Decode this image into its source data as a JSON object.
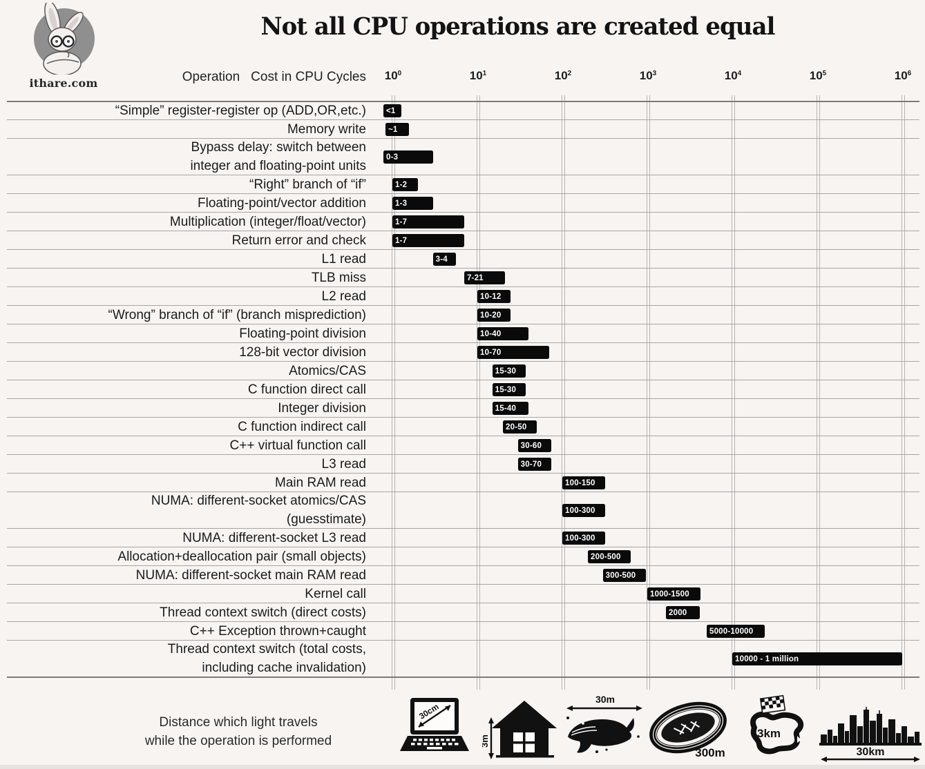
{
  "page": {
    "title": "Not all CPU operations are created equal",
    "logo_text": "ithare.com"
  },
  "header": {
    "col_operation": "Operation",
    "col_cost": "Cost in CPU Cycles"
  },
  "axis": {
    "scale": "log10",
    "ticks": [
      {
        "base": "10",
        "exp": "0"
      },
      {
        "base": "10",
        "exp": "1"
      },
      {
        "base": "10",
        "exp": "2"
      },
      {
        "base": "10",
        "exp": "3"
      },
      {
        "base": "10",
        "exp": "4"
      },
      {
        "base": "10",
        "exp": "5"
      },
      {
        "base": "10",
        "exp": "6"
      }
    ]
  },
  "chart_data": {
    "type": "bar",
    "orientation": "horizontal",
    "title": "Not all CPU operations are created equal",
    "xlabel": "Cost in CPU Cycles",
    "xscale": "log",
    "xlim": [
      1,
      1000000
    ],
    "grid": "vertical-decades",
    "rows": [
      {
        "label": [
          "“Simple” register-register op (ADD,OR,etc.)"
        ],
        "bar_label": "<1",
        "lo": 0,
        "hi": 1
      },
      {
        "label": [
          "Memory write"
        ],
        "bar_label": "~1",
        "lo": 1,
        "hi": 1
      },
      {
        "label": [
          "Bypass delay: switch between",
          "integer and floating-point units"
        ],
        "bar_label": "0-3",
        "lo": 0,
        "hi": 3
      },
      {
        "label": [
          "“Right” branch of “if”"
        ],
        "bar_label": "1-2",
        "lo": 1,
        "hi": 2
      },
      {
        "label": [
          "Floating-point/vector addition"
        ],
        "bar_label": "1-3",
        "lo": 1,
        "hi": 3
      },
      {
        "label": [
          "Multiplication (integer/float/vector)"
        ],
        "bar_label": "1-7",
        "lo": 1,
        "hi": 7
      },
      {
        "label": [
          "Return error and check"
        ],
        "bar_label": "1-7",
        "lo": 1,
        "hi": 7
      },
      {
        "label": [
          "L1 read"
        ],
        "bar_label": "3-4",
        "lo": 3,
        "hi": 4
      },
      {
        "label": [
          "TLB miss"
        ],
        "bar_label": "7-21",
        "lo": 7,
        "hi": 21
      },
      {
        "label": [
          "L2 read"
        ],
        "bar_label": "10-12",
        "lo": 10,
        "hi": 12
      },
      {
        "label": [
          "“Wrong” branch of “if” (branch misprediction)"
        ],
        "bar_label": "10-20",
        "lo": 10,
        "hi": 20
      },
      {
        "label": [
          "Floating-point division"
        ],
        "bar_label": "10-40",
        "lo": 10,
        "hi": 40
      },
      {
        "label": [
          "128-bit vector division"
        ],
        "bar_label": "10-70",
        "lo": 10,
        "hi": 70
      },
      {
        "label": [
          "Atomics/CAS"
        ],
        "bar_label": "15-30",
        "lo": 15,
        "hi": 30
      },
      {
        "label": [
          "C function direct call"
        ],
        "bar_label": "15-30",
        "lo": 15,
        "hi": 30
      },
      {
        "label": [
          "Integer division"
        ],
        "bar_label": "15-40",
        "lo": 15,
        "hi": 40
      },
      {
        "label": [
          "C function indirect call"
        ],
        "bar_label": "20-50",
        "lo": 20,
        "hi": 50
      },
      {
        "label": [
          "C++ virtual function call"
        ],
        "bar_label": "30-60",
        "lo": 30,
        "hi": 60
      },
      {
        "label": [
          "L3 read"
        ],
        "bar_label": "30-70",
        "lo": 30,
        "hi": 70
      },
      {
        "label": [
          "Main RAM read"
        ],
        "bar_label": "100-150",
        "lo": 100,
        "hi": 150
      },
      {
        "label": [
          "NUMA: different-socket atomics/CAS",
          "(guesstimate)"
        ],
        "bar_label": "100-300",
        "lo": 100,
        "hi": 300
      },
      {
        "label": [
          "NUMA: different-socket L3 read"
        ],
        "bar_label": "100-300",
        "lo": 100,
        "hi": 300
      },
      {
        "label": [
          "Allocation+deallocation pair (small objects)"
        ],
        "bar_label": "200-500",
        "lo": 200,
        "hi": 500
      },
      {
        "label": [
          "NUMA: different-socket main RAM read"
        ],
        "bar_label": "300-500",
        "lo": 300,
        "hi": 500
      },
      {
        "label": [
          "Kernel call"
        ],
        "bar_label": "1000-1500",
        "lo": 1000,
        "hi": 1500
      },
      {
        "label": [
          "Thread context switch (direct costs)"
        ],
        "bar_label": "2000",
        "lo": 2000,
        "hi": 2000
      },
      {
        "label": [
          "C++ Exception thrown+caught"
        ],
        "bar_label": "5000-10000",
        "lo": 5000,
        "hi": 10000
      },
      {
        "label": [
          "Thread context switch (total costs,",
          "including cache invalidation)"
        ],
        "bar_label": "10000 - 1 million",
        "lo": 10000,
        "hi": 1000000
      }
    ]
  },
  "footer": {
    "caption_line1": "Distance which light travels",
    "caption_line2": "while the operation is performed",
    "icons": [
      {
        "name": "laptop",
        "label": "30cm"
      },
      {
        "name": "house",
        "label": "3m"
      },
      {
        "name": "whale",
        "label": "30m"
      },
      {
        "name": "stadium-track",
        "label": "300m"
      },
      {
        "name": "race-circuit",
        "label": "3km"
      },
      {
        "name": "city-skyline",
        "label": "30km"
      }
    ]
  },
  "colors": {
    "background": "#f7f4f2",
    "bar": "#0a0a0a",
    "bar_text": "#ffffff",
    "gridline": "#b7b4b4",
    "row_line": "#a8a5a5",
    "text": "#1b1b1b"
  }
}
